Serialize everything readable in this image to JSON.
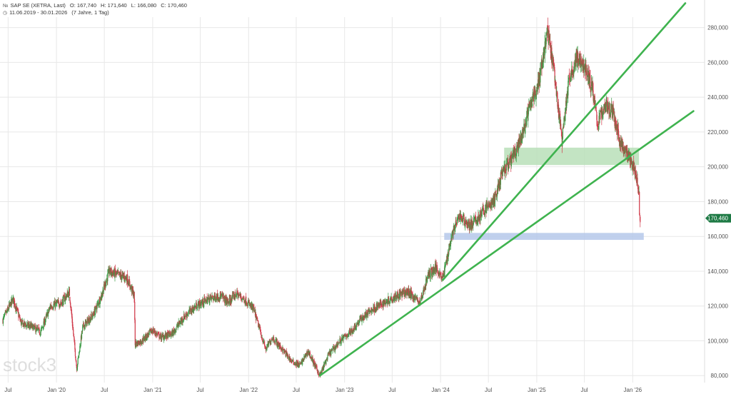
{
  "header": {
    "instrument": "SAP SE (XETRA, Last)",
    "open": "O: 167,740",
    "high": "H: 171,640",
    "low": "L: 166,080",
    "close": "C: 170,460",
    "range": "11.06.2019 - 30.01.2026",
    "period": "(7 Jahre, 1 Tag)"
  },
  "watermark": "stock3",
  "colors": {
    "up": "#3a9a44",
    "down": "#d03a4a",
    "trendline": "#3fb34f",
    "green_zone": "#b9dfb9",
    "blue_zone": "#b5c8ea",
    "last_price_badge": "#1e7a45",
    "grid": "#e8e8e8",
    "text": "#555555"
  },
  "chart_data": {
    "type": "candlestick",
    "x_range": [
      "2019-06-11",
      "2026-01-30"
    ],
    "y_range": [
      76000,
      286000
    ],
    "y_axis_position": "right",
    "grid": true,
    "y_ticks": [
      {
        "value": 80000,
        "label": "80,000"
      },
      {
        "value": 100000,
        "label": "100,000"
      },
      {
        "value": 120000,
        "label": "120,000"
      },
      {
        "value": 140000,
        "label": "140,000"
      },
      {
        "value": 160000,
        "label": "160,000"
      },
      {
        "value": 180000,
        "label": "180,000"
      },
      {
        "value": 200000,
        "label": "200,000"
      },
      {
        "value": 220000,
        "label": "220,000"
      },
      {
        "value": 240000,
        "label": "240,000"
      },
      {
        "value": 260000,
        "label": "260,000"
      },
      {
        "value": 280000,
        "label": "280,000"
      }
    ],
    "x_ticks": [
      {
        "date": "2019-07-01",
        "label": "Jul"
      },
      {
        "date": "2020-01-01",
        "label": "Jan '20"
      },
      {
        "date": "2020-07-01",
        "label": "Jul"
      },
      {
        "date": "2021-01-01",
        "label": "Jan '21"
      },
      {
        "date": "2021-07-01",
        "label": "Jul"
      },
      {
        "date": "2022-01-01",
        "label": "Jan '22"
      },
      {
        "date": "2022-07-01",
        "label": "Jul"
      },
      {
        "date": "2023-01-01",
        "label": "Jan '23"
      },
      {
        "date": "2023-07-01",
        "label": "Jul"
      },
      {
        "date": "2024-01-01",
        "label": "Jan '24"
      },
      {
        "date": "2024-07-01",
        "label": "Jul"
      },
      {
        "date": "2025-01-01",
        "label": "Jan '25"
      },
      {
        "date": "2025-07-01",
        "label": "Jul"
      },
      {
        "date": "2026-01-01",
        "label": "Jan '26"
      }
    ],
    "last_price": {
      "value": 170460,
      "label": "170,460"
    },
    "price_path": [
      [
        "2019-06-11",
        112000
      ],
      [
        "2019-07-20",
        124000
      ],
      [
        "2019-08-20",
        110000
      ],
      [
        "2019-10-01",
        108000
      ],
      [
        "2019-11-01",
        105000
      ],
      [
        "2019-12-10",
        120000
      ],
      [
        "2020-01-20",
        122000
      ],
      [
        "2020-02-19",
        128000
      ],
      [
        "2020-03-18",
        84000
      ],
      [
        "2020-04-10",
        108000
      ],
      [
        "2020-05-20",
        115000
      ],
      [
        "2020-06-20",
        126000
      ],
      [
        "2020-07-20",
        140000
      ],
      [
        "2020-08-20",
        138000
      ],
      [
        "2020-09-25",
        136000
      ],
      [
        "2020-10-23",
        126000
      ],
      [
        "2020-10-26",
        98000
      ],
      [
        "2020-11-20",
        100000
      ],
      [
        "2020-12-31",
        106000
      ],
      [
        "2021-02-01",
        102000
      ],
      [
        "2021-03-15",
        104000
      ],
      [
        "2021-05-01",
        114000
      ],
      [
        "2021-06-15",
        120000
      ],
      [
        "2021-08-01",
        124000
      ],
      [
        "2021-09-15",
        126000
      ],
      [
        "2021-10-15",
        122000
      ],
      [
        "2021-11-15",
        127000
      ],
      [
        "2021-12-15",
        124000
      ],
      [
        "2022-01-20",
        118000
      ],
      [
        "2022-03-07",
        95000
      ],
      [
        "2022-04-01",
        102000
      ],
      [
        "2022-05-15",
        94000
      ],
      [
        "2022-06-15",
        88000
      ],
      [
        "2022-07-15",
        86000
      ],
      [
        "2022-08-15",
        94000
      ],
      [
        "2022-09-29",
        80000
      ],
      [
        "2022-11-01",
        92000
      ],
      [
        "2022-12-15",
        100000
      ],
      [
        "2023-01-30",
        106000
      ],
      [
        "2023-03-01",
        112000
      ],
      [
        "2023-04-15",
        118000
      ],
      [
        "2023-06-01",
        122000
      ],
      [
        "2023-07-15",
        126000
      ],
      [
        "2023-09-01",
        128000
      ],
      [
        "2023-10-15",
        122000
      ],
      [
        "2023-11-15",
        138000
      ],
      [
        "2023-12-15",
        142000
      ],
      [
        "2024-01-10",
        136000
      ],
      [
        "2024-01-26",
        148000
      ],
      [
        "2024-02-15",
        162000
      ],
      [
        "2024-03-15",
        172000
      ],
      [
        "2024-04-20",
        166000
      ],
      [
        "2024-05-20",
        170000
      ],
      [
        "2024-06-20",
        176000
      ],
      [
        "2024-07-22",
        180000
      ],
      [
        "2024-08-20",
        195000
      ],
      [
        "2024-09-30",
        205000
      ],
      [
        "2024-11-01",
        215000
      ],
      [
        "2024-12-01",
        232000
      ],
      [
        "2025-01-10",
        250000
      ],
      [
        "2025-02-10",
        278000
      ],
      [
        "2025-03-01",
        262000
      ],
      [
        "2025-04-07",
        215000
      ],
      [
        "2025-05-01",
        248000
      ],
      [
        "2025-06-01",
        262000
      ],
      [
        "2025-07-01",
        258000
      ],
      [
        "2025-08-01",
        245000
      ],
      [
        "2025-08-20",
        225000
      ],
      [
        "2025-09-20",
        236000
      ],
      [
        "2025-10-15",
        232000
      ],
      [
        "2025-11-20",
        212000
      ],
      [
        "2025-12-15",
        206000
      ],
      [
        "2026-01-10",
        198000
      ],
      [
        "2026-01-25",
        186000
      ],
      [
        "2026-01-26",
        172000
      ],
      [
        "2026-01-30",
        170460
      ]
    ],
    "trendlines": [
      {
        "start": [
          "2022-09-29",
          80000
        ],
        "end": [
          "2026-08-20",
          232000
        ]
      },
      {
        "start": [
          "2024-01-10",
          135000
        ],
        "end": [
          "2026-07-20",
          294000
        ]
      }
    ],
    "zones": [
      {
        "name": "green",
        "from": "2024-08-30",
        "to": "2026-01-25",
        "low": 201000,
        "high": 211000
      },
      {
        "name": "blue",
        "from": "2024-01-15",
        "to": "2026-02-12",
        "low": 158000,
        "high": 162000
      }
    ]
  }
}
